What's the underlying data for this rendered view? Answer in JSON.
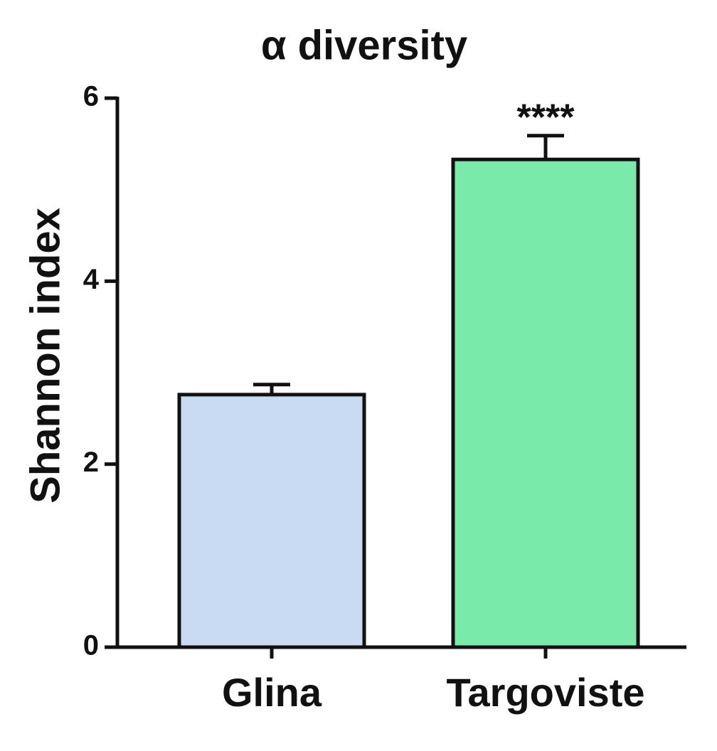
{
  "chart_data": {
    "type": "bar",
    "title": "α diversity",
    "y_label": "Shannon index",
    "categories": [
      "Glina",
      "Targoviste"
    ],
    "series": [
      {
        "name": null,
        "colors": [
          "#c9daf3",
          "#7aeaaa"
        ],
        "values": [
          2.76,
          5.33
        ],
        "error": [
          0.11,
          0.26
        ]
      }
    ],
    "annotations": [
      null,
      "****"
    ],
    "ylim": [
      0,
      6
    ],
    "yticks": [
      0,
      2,
      4,
      6
    ],
    "grid": false
  }
}
